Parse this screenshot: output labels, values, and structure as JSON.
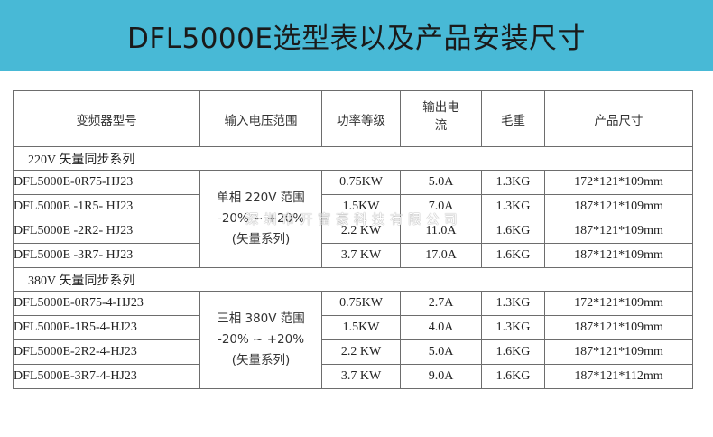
{
  "title": "DFL5000E选型表以及产品安装尺寸",
  "watermark": "深圳市开富豪科技有限公司",
  "colors": {
    "banner": "#48b9d6",
    "grid": "#6d6d6d"
  },
  "table": {
    "headers": {
      "model": "变频器型号",
      "voltage": "输入电压范围",
      "power": "功率等级",
      "current_line1": "输出电",
      "current_line2": "流",
      "weight": "毛重",
      "size": "产品尺寸"
    },
    "sections": [
      {
        "label": "220V 矢量同步系列",
        "voltage_lines": [
          "单相 220V 范围",
          "-20% ~ +20%",
          "(矢量系列)"
        ],
        "rows": [
          {
            "model": "DFL5000E-0R75-HJ23",
            "power": "0.75KW",
            "current": "5.0A",
            "weight": "1.3KG",
            "size": "172*121*109mm"
          },
          {
            "model": "DFL5000E -1R5- HJ23",
            "power": "1.5KW",
            "current": "7.0A",
            "weight": "1.3KG",
            "size": "187*121*109mm"
          },
          {
            "model": "DFL5000E -2R2- HJ23",
            "power": "2.2 KW",
            "current": "11.0A",
            "weight": "1.6KG",
            "size": "187*121*109mm"
          },
          {
            "model": "DFL5000E -3R7- HJ23",
            "power": "3.7 KW",
            "current": "17.0A",
            "weight": "1.6KG",
            "size": "187*121*109mm"
          }
        ]
      },
      {
        "label": "380V 矢量同步系列",
        "voltage_lines": [
          "三相 380V 范围",
          "-20% ~ +20%",
          "(矢量系列)"
        ],
        "rows": [
          {
            "model": "DFL5000E-0R75-4-HJ23",
            "power": "0.75KW",
            "current": "2.7A",
            "weight": "1.3KG",
            "size": "172*121*109mm"
          },
          {
            "model": "DFL5000E-1R5-4-HJ23",
            "power": "1.5KW",
            "current": "4.0A",
            "weight": "1.3KG",
            "size": "187*121*109mm"
          },
          {
            "model": "DFL5000E-2R2-4-HJ23",
            "power": "2.2 KW",
            "current": "5.0A",
            "weight": "1.6KG",
            "size": "187*121*109mm"
          },
          {
            "model": "DFL5000E-3R7-4-HJ23",
            "power": "3.7 KW",
            "current": "9.0A",
            "weight": "1.6KG",
            "size": "187*121*112mm"
          }
        ]
      }
    ]
  }
}
